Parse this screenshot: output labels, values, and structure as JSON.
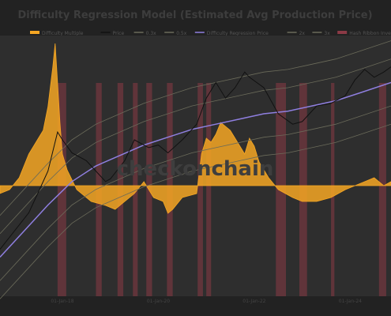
{
  "chart_data": {
    "type": "line",
    "title": "Difficulty Regression Model (Estimated Avg Production Price)",
    "watermark": "checkonchain",
    "legend": [
      {
        "name": "Difficulty Multiple",
        "color": "#f5a623",
        "style": "area"
      },
      {
        "name": "Price",
        "color": "#111111",
        "style": "line"
      },
      {
        "name": "0.3x",
        "color": "#6b6b5a",
        "style": "line"
      },
      {
        "name": "0.5x",
        "color": "#6b6b5a",
        "style": "line"
      },
      {
        "name": "Difficulty Regression Price",
        "color": "#8f7fe0",
        "style": "line"
      },
      {
        "name": "2x",
        "color": "#6b6b5a",
        "style": "line"
      },
      {
        "name": "3x",
        "color": "#6b6b5a",
        "style": "line"
      },
      {
        "name": "Hash Ribbon Inversion",
        "color": "#8b3a46",
        "style": "band"
      }
    ],
    "x_ticks": [
      "01-Jan-18",
      "01-Jan-20",
      "01-Jan-22",
      "01-Jan-24"
    ],
    "x_range": [
      2016.7,
      2024.85
    ],
    "price_range_log": [
      0.0,
      1.0
    ],
    "multiple_range": [
      -0.4,
      2.9
    ],
    "multiple_baseline": 1.0,
    "hash_ribbon_bands": [
      [
        2017.9,
        2018.08
      ],
      [
        2018.7,
        2018.82
      ],
      [
        2019.15,
        2019.27
      ],
      [
        2019.47,
        2019.57
      ],
      [
        2019.75,
        2019.87
      ],
      [
        2020.18,
        2020.3
      ],
      [
        2020.82,
        2020.93
      ],
      [
        2021.0,
        2021.1
      ],
      [
        2022.45,
        2022.66
      ],
      [
        2022.94,
        2023.1
      ],
      [
        2023.6,
        2023.67
      ],
      [
        2024.6,
        2024.75
      ]
    ],
    "series": [
      {
        "name": "Difficulty Multiple",
        "x": [
          2016.7,
          2016.9,
          2017.1,
          2017.3,
          2017.5,
          2017.6,
          2017.7,
          2017.8,
          2017.85,
          2017.9,
          2017.95,
          2018.0,
          2018.1,
          2018.3,
          2018.6,
          2018.9,
          2019.1,
          2019.3,
          2019.5,
          2019.7,
          2019.9,
          2020.1,
          2020.2,
          2020.3,
          2020.5,
          2020.8,
          2020.9,
          2021.0,
          2021.1,
          2021.2,
          2021.3,
          2021.5,
          2021.7,
          2021.8,
          2021.9,
          2022.0,
          2022.1,
          2022.3,
          2022.5,
          2022.8,
          2023.0,
          2023.3,
          2023.6,
          2023.9,
          2024.1,
          2024.3,
          2024.5,
          2024.7,
          2024.85
        ],
        "values": [
          0.9,
          0.95,
          1.1,
          1.4,
          1.6,
          1.7,
          2.0,
          2.5,
          2.8,
          2.3,
          1.8,
          1.4,
          1.2,
          0.95,
          0.8,
          0.75,
          0.7,
          0.8,
          0.9,
          1.05,
          0.85,
          0.8,
          0.65,
          0.7,
          0.85,
          0.9,
          1.4,
          1.6,
          1.55,
          1.65,
          1.8,
          1.7,
          1.5,
          1.4,
          1.6,
          1.5,
          1.3,
          1.1,
          0.95,
          0.85,
          0.8,
          0.8,
          0.85,
          0.95,
          1.0,
          1.05,
          1.1,
          1.0,
          1.05
        ]
      },
      {
        "name": "Price",
        "x": [
          2016.7,
          2017.0,
          2017.3,
          2017.5,
          2017.7,
          2017.9,
          2018.0,
          2018.2,
          2018.5,
          2018.9,
          2019.0,
          2019.3,
          2019.5,
          2019.8,
          2020.0,
          2020.2,
          2020.5,
          2020.8,
          2021.0,
          2021.2,
          2021.4,
          2021.6,
          2021.8,
          2021.9,
          2022.2,
          2022.5,
          2022.8,
          2023.0,
          2023.3,
          2023.6,
          2023.9,
          2024.1,
          2024.3,
          2024.5,
          2024.7,
          2024.85
        ],
        "values": [
          0.18,
          0.25,
          0.32,
          0.4,
          0.48,
          0.63,
          0.6,
          0.55,
          0.52,
          0.44,
          0.45,
          0.52,
          0.6,
          0.57,
          0.58,
          0.55,
          0.6,
          0.66,
          0.76,
          0.82,
          0.76,
          0.8,
          0.86,
          0.84,
          0.8,
          0.7,
          0.66,
          0.67,
          0.73,
          0.74,
          0.77,
          0.83,
          0.87,
          0.84,
          0.86,
          0.88
        ]
      },
      {
        "name": "Difficulty Regression Price",
        "x": [
          2016.7,
          2017.2,
          2017.7,
          2018.2,
          2018.7,
          2019.2,
          2019.7,
          2020.2,
          2020.7,
          2021.2,
          2021.7,
          2022.2,
          2022.7,
          2023.2,
          2023.7,
          2024.2,
          2024.85
        ],
        "values": [
          0.15,
          0.25,
          0.35,
          0.44,
          0.5,
          0.54,
          0.58,
          0.61,
          0.64,
          0.66,
          0.68,
          0.7,
          0.71,
          0.73,
          0.75,
          0.78,
          0.82
        ]
      }
    ]
  }
}
